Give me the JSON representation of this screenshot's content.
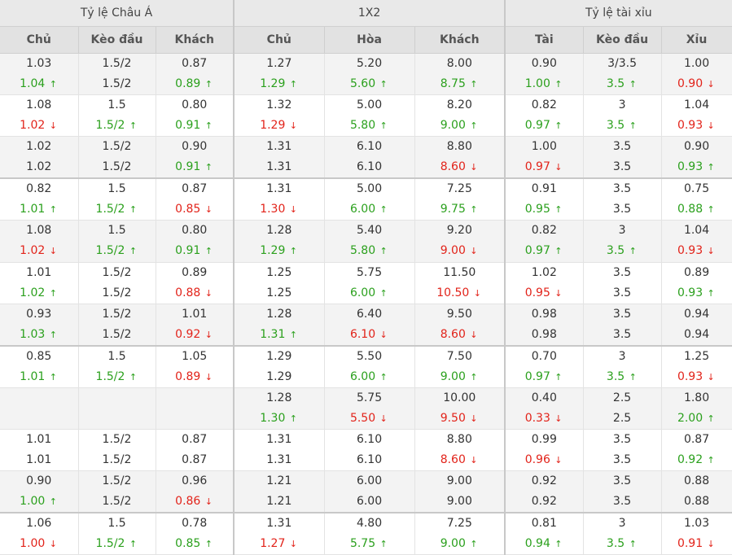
{
  "groups": [
    "Tỷ lệ Châu Á",
    "1X2",
    "Tỷ lệ tài xỉu"
  ],
  "columns": [
    "Chủ",
    "Kèo đầu",
    "Khách",
    "Chủ",
    "Hòa",
    "Khách",
    "Tài",
    "Kèo đầu",
    "Xỉu"
  ],
  "colors": {
    "up": "#2ba01d",
    "down": "#e2231a",
    "header_bg": "#e2e2e2",
    "alt_row_bg": "#f3f3f3"
  },
  "rows": [
    {
      "alt": true,
      "sep": false,
      "cells": [
        {
          "o": "1.03",
          "c": "1.04",
          "d": "up"
        },
        {
          "o": "1.5/2",
          "c": "1.5/2",
          "d": ""
        },
        {
          "o": "0.87",
          "c": "0.89",
          "d": "up"
        },
        {
          "o": "1.27",
          "c": "1.29",
          "d": "up"
        },
        {
          "o": "5.20",
          "c": "5.60",
          "d": "up"
        },
        {
          "o": "8.00",
          "c": "8.75",
          "d": "up"
        },
        {
          "o": "0.90",
          "c": "1.00",
          "d": "up"
        },
        {
          "o": "3/3.5",
          "c": "3.5",
          "d": "up"
        },
        {
          "o": "1.00",
          "c": "0.90",
          "d": "down"
        }
      ]
    },
    {
      "alt": false,
      "sep": false,
      "cells": [
        {
          "o": "1.08",
          "c": "1.02",
          "d": "down"
        },
        {
          "o": "1.5",
          "c": "1.5/2",
          "d": "up"
        },
        {
          "o": "0.80",
          "c": "0.91",
          "d": "up"
        },
        {
          "o": "1.32",
          "c": "1.29",
          "d": "down"
        },
        {
          "o": "5.00",
          "c": "5.80",
          "d": "up"
        },
        {
          "o": "8.20",
          "c": "9.00",
          "d": "up"
        },
        {
          "o": "0.82",
          "c": "0.97",
          "d": "up"
        },
        {
          "o": "3",
          "c": "3.5",
          "d": "up"
        },
        {
          "o": "1.04",
          "c": "0.93",
          "d": "down"
        }
      ]
    },
    {
      "alt": true,
      "sep": false,
      "cells": [
        {
          "o": "1.02",
          "c": "1.02",
          "d": ""
        },
        {
          "o": "1.5/2",
          "c": "1.5/2",
          "d": ""
        },
        {
          "o": "0.90",
          "c": "0.91",
          "d": "up"
        },
        {
          "o": "1.31",
          "c": "1.31",
          "d": ""
        },
        {
          "o": "6.10",
          "c": "6.10",
          "d": ""
        },
        {
          "o": "8.80",
          "c": "8.60",
          "d": "down"
        },
        {
          "o": "1.00",
          "c": "0.97",
          "d": "down"
        },
        {
          "o": "3.5",
          "c": "3.5",
          "d": ""
        },
        {
          "o": "0.90",
          "c": "0.93",
          "d": "up"
        }
      ]
    },
    {
      "alt": false,
      "sep": true,
      "cells": [
        {
          "o": "0.82",
          "c": "1.01",
          "d": "up"
        },
        {
          "o": "1.5",
          "c": "1.5/2",
          "d": "up"
        },
        {
          "o": "0.87",
          "c": "0.85",
          "d": "down"
        },
        {
          "o": "1.31",
          "c": "1.30",
          "d": "down"
        },
        {
          "o": "5.00",
          "c": "6.00",
          "d": "up"
        },
        {
          "o": "7.25",
          "c": "9.75",
          "d": "up"
        },
        {
          "o": "0.91",
          "c": "0.95",
          "d": "up"
        },
        {
          "o": "3.5",
          "c": "3.5",
          "d": ""
        },
        {
          "o": "0.75",
          "c": "0.88",
          "d": "up"
        }
      ]
    },
    {
      "alt": true,
      "sep": false,
      "cells": [
        {
          "o": "1.08",
          "c": "1.02",
          "d": "down"
        },
        {
          "o": "1.5",
          "c": "1.5/2",
          "d": "up"
        },
        {
          "o": "0.80",
          "c": "0.91",
          "d": "up"
        },
        {
          "o": "1.28",
          "c": "1.29",
          "d": "up"
        },
        {
          "o": "5.40",
          "c": "5.80",
          "d": "up"
        },
        {
          "o": "9.20",
          "c": "9.00",
          "d": "down"
        },
        {
          "o": "0.82",
          "c": "0.97",
          "d": "up"
        },
        {
          "o": "3",
          "c": "3.5",
          "d": "up"
        },
        {
          "o": "1.04",
          "c": "0.93",
          "d": "down"
        }
      ]
    },
    {
      "alt": false,
      "sep": false,
      "cells": [
        {
          "o": "1.01",
          "c": "1.02",
          "d": "up"
        },
        {
          "o": "1.5/2",
          "c": "1.5/2",
          "d": ""
        },
        {
          "o": "0.89",
          "c": "0.88",
          "d": "down"
        },
        {
          "o": "1.25",
          "c": "1.25",
          "d": ""
        },
        {
          "o": "5.75",
          "c": "6.00",
          "d": "up"
        },
        {
          "o": "11.50",
          "c": "10.50",
          "d": "down"
        },
        {
          "o": "1.02",
          "c": "0.95",
          "d": "down"
        },
        {
          "o": "3.5",
          "c": "3.5",
          "d": ""
        },
        {
          "o": "0.89",
          "c": "0.93",
          "d": "up"
        }
      ]
    },
    {
      "alt": true,
      "sep": false,
      "cells": [
        {
          "o": "0.93",
          "c": "1.03",
          "d": "up"
        },
        {
          "o": "1.5/2",
          "c": "1.5/2",
          "d": ""
        },
        {
          "o": "1.01",
          "c": "0.92",
          "d": "down"
        },
        {
          "o": "1.28",
          "c": "1.31",
          "d": "up"
        },
        {
          "o": "6.40",
          "c": "6.10",
          "d": "down"
        },
        {
          "o": "9.50",
          "c": "8.60",
          "d": "down"
        },
        {
          "o": "0.98",
          "c": "0.98",
          "d": ""
        },
        {
          "o": "3.5",
          "c": "3.5",
          "d": ""
        },
        {
          "o": "0.94",
          "c": "0.94",
          "d": ""
        }
      ]
    },
    {
      "alt": false,
      "sep": true,
      "cells": [
        {
          "o": "0.85",
          "c": "1.01",
          "d": "up"
        },
        {
          "o": "1.5",
          "c": "1.5/2",
          "d": "up"
        },
        {
          "o": "1.05",
          "c": "0.89",
          "d": "down"
        },
        {
          "o": "1.29",
          "c": "1.29",
          "d": ""
        },
        {
          "o": "5.50",
          "c": "6.00",
          "d": "up"
        },
        {
          "o": "7.50",
          "c": "9.00",
          "d": "up"
        },
        {
          "o": "0.70",
          "c": "0.97",
          "d": "up"
        },
        {
          "o": "3",
          "c": "3.5",
          "d": "up"
        },
        {
          "o": "1.25",
          "c": "0.93",
          "d": "down"
        }
      ]
    },
    {
      "alt": true,
      "sep": false,
      "cells": [
        {
          "o": "",
          "c": "",
          "d": ""
        },
        {
          "o": "",
          "c": "",
          "d": ""
        },
        {
          "o": "",
          "c": "",
          "d": ""
        },
        {
          "o": "1.28",
          "c": "1.30",
          "d": "up"
        },
        {
          "o": "5.75",
          "c": "5.50",
          "d": "down"
        },
        {
          "o": "10.00",
          "c": "9.50",
          "d": "down"
        },
        {
          "o": "0.40",
          "c": "0.33",
          "d": "down"
        },
        {
          "o": "2.5",
          "c": "2.5",
          "d": ""
        },
        {
          "o": "1.80",
          "c": "2.00",
          "d": "up"
        }
      ]
    },
    {
      "alt": false,
      "sep": false,
      "cells": [
        {
          "o": "1.01",
          "c": "1.01",
          "d": ""
        },
        {
          "o": "1.5/2",
          "c": "1.5/2",
          "d": ""
        },
        {
          "o": "0.87",
          "c": "0.87",
          "d": ""
        },
        {
          "o": "1.31",
          "c": "1.31",
          "d": ""
        },
        {
          "o": "6.10",
          "c": "6.10",
          "d": ""
        },
        {
          "o": "8.80",
          "c": "8.60",
          "d": "down"
        },
        {
          "o": "0.99",
          "c": "0.96",
          "d": "down"
        },
        {
          "o": "3.5",
          "c": "3.5",
          "d": ""
        },
        {
          "o": "0.87",
          "c": "0.92",
          "d": "up"
        }
      ]
    },
    {
      "alt": true,
      "sep": false,
      "cells": [
        {
          "o": "0.90",
          "c": "1.00",
          "d": "up"
        },
        {
          "o": "1.5/2",
          "c": "1.5/2",
          "d": ""
        },
        {
          "o": "0.96",
          "c": "0.86",
          "d": "down"
        },
        {
          "o": "1.21",
          "c": "1.21",
          "d": ""
        },
        {
          "o": "6.00",
          "c": "6.00",
          "d": ""
        },
        {
          "o": "9.00",
          "c": "9.00",
          "d": ""
        },
        {
          "o": "0.92",
          "c": "0.92",
          "d": ""
        },
        {
          "o": "3.5",
          "c": "3.5",
          "d": ""
        },
        {
          "o": "0.88",
          "c": "0.88",
          "d": ""
        }
      ]
    },
    {
      "alt": false,
      "sep": true,
      "cells": [
        {
          "o": "1.06",
          "c": "1.00",
          "d": "down"
        },
        {
          "o": "1.5",
          "c": "1.5/2",
          "d": "up"
        },
        {
          "o": "0.78",
          "c": "0.85",
          "d": "up"
        },
        {
          "o": "1.31",
          "c": "1.27",
          "d": "down"
        },
        {
          "o": "4.80",
          "c": "5.75",
          "d": "up"
        },
        {
          "o": "7.25",
          "c": "9.00",
          "d": "up"
        },
        {
          "o": "0.81",
          "c": "0.94",
          "d": "up"
        },
        {
          "o": "3",
          "c": "3.5",
          "d": "up"
        },
        {
          "o": "1.03",
          "c": "0.91",
          "d": "down"
        }
      ]
    }
  ]
}
